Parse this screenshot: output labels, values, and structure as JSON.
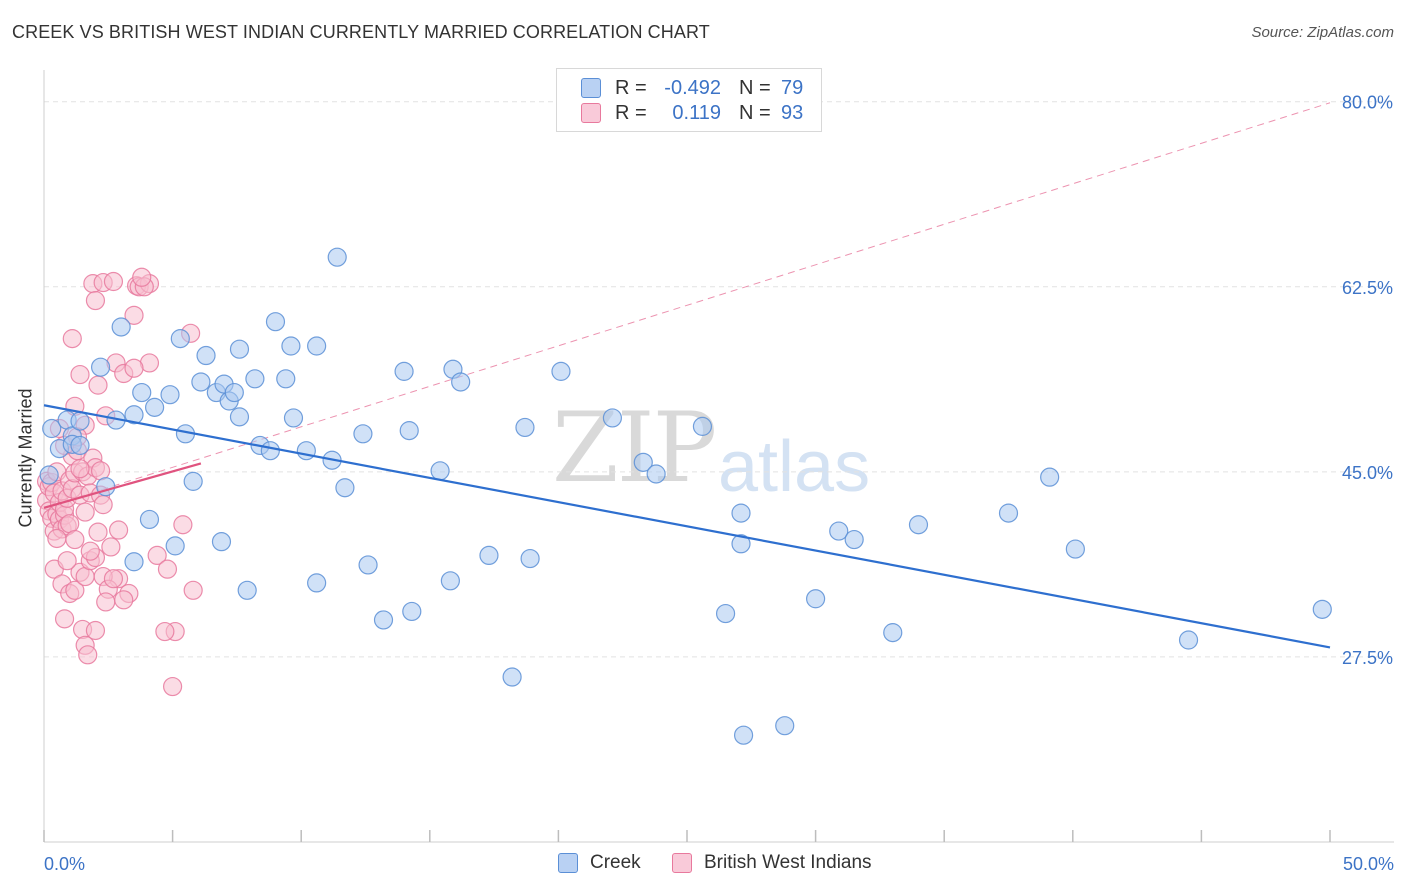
{
  "title": "CREEK VS BRITISH WEST INDIAN CURRENTLY MARRIED CORRELATION CHART",
  "source": "Source: ZipAtlas.com",
  "watermark": {
    "zip": "ZIP",
    "atlas": "atlas"
  },
  "colors": {
    "creek_fill": "#aac8f0",
    "creek_stroke": "#5b8fd6",
    "creek_line": "#2e6fcf",
    "bwi_fill": "#f7bfd0",
    "bwi_stroke": "#e8799d",
    "bwi_line": "#e0537f",
    "value_blue": "#3c73c6",
    "grid": "#e2e2e2"
  },
  "legend": {
    "rows": [
      {
        "r_label": "R =",
        "r_value": "-0.492",
        "n_label": "N =",
        "n_value": "79"
      },
      {
        "r_label": "R =",
        "r_value": "0.119",
        "n_label": "N =",
        "n_value": "93"
      }
    ]
  },
  "bottom_legend": {
    "creek": "Creek",
    "bwi": "British West Indians"
  },
  "chart_data": {
    "type": "scatter",
    "title": "CREEK VS BRITISH WEST INDIAN CURRENTLY MARRIED CORRELATION CHART",
    "xlabel": "",
    "ylabel": "Currently Married",
    "xlim": [
      0,
      50
    ],
    "ylim": [
      10,
      83
    ],
    "x_tick_labels": [
      "0.0%",
      "50.0%"
    ],
    "y_ticks": [
      27.5,
      45.0,
      62.5,
      80.0
    ],
    "y_tick_labels": [
      "27.5%",
      "45.0%",
      "62.5%",
      "80.0%"
    ],
    "grid": true,
    "series": [
      {
        "name": "Creek",
        "r": -0.492,
        "n": 79,
        "trend": {
          "x": [
            0,
            50
          ],
          "y": [
            51.3,
            28.4
          ]
        },
        "points": [
          [
            0.3,
            49.1
          ],
          [
            0.6,
            47.2
          ],
          [
            0.9,
            49.9
          ],
          [
            1.1,
            48.4
          ],
          [
            1.4,
            49.8
          ],
          [
            1.1,
            47.6
          ],
          [
            2.2,
            54.9
          ],
          [
            2.8,
            49.9
          ],
          [
            3.0,
            58.7
          ],
          [
            3.5,
            50.4
          ],
          [
            3.8,
            52.5
          ],
          [
            4.3,
            51.1
          ],
          [
            4.9,
            52.3
          ],
          [
            5.3,
            57.6
          ],
          [
            5.5,
            48.6
          ],
          [
            6.1,
            53.5
          ],
          [
            6.3,
            56.0
          ],
          [
            6.7,
            52.5
          ],
          [
            7.0,
            53.3
          ],
          [
            7.2,
            51.7
          ],
          [
            7.4,
            52.5
          ],
          [
            7.6,
            50.2
          ],
          [
            7.6,
            56.6
          ],
          [
            8.2,
            53.8
          ],
          [
            8.4,
            47.5
          ],
          [
            8.8,
            47.0
          ],
          [
            9.0,
            59.2
          ],
          [
            9.4,
            53.8
          ],
          [
            9.6,
            56.9
          ],
          [
            9.7,
            50.1
          ],
          [
            10.2,
            47.0
          ],
          [
            10.6,
            56.9
          ],
          [
            11.2,
            46.1
          ],
          [
            11.4,
            65.3
          ],
          [
            12.4,
            48.6
          ],
          [
            14.0,
            54.5
          ],
          [
            14.2,
            48.9
          ],
          [
            15.9,
            54.7
          ],
          [
            16.2,
            53.5
          ],
          [
            15.4,
            45.1
          ],
          [
            18.7,
            49.2
          ],
          [
            20.1,
            54.5
          ],
          [
            22.1,
            50.1
          ],
          [
            23.3,
            45.9
          ],
          [
            23.8,
            44.8
          ],
          [
            25.6,
            49.3
          ],
          [
            27.1,
            41.1
          ],
          [
            30.9,
            39.4
          ],
          [
            31.5,
            38.6
          ],
          [
            34.0,
            40.0
          ],
          [
            37.5,
            41.1
          ],
          [
            39.1,
            44.5
          ],
          [
            40.1,
            37.7
          ],
          [
            44.5,
            29.1
          ],
          [
            49.7,
            32.0
          ],
          [
            0.2,
            44.7
          ],
          [
            1.4,
            47.5
          ],
          [
            2.4,
            43.6
          ],
          [
            3.5,
            36.5
          ],
          [
            4.1,
            40.5
          ],
          [
            5.1,
            38.0
          ],
          [
            5.8,
            44.1
          ],
          [
            6.9,
            38.4
          ],
          [
            7.9,
            33.8
          ],
          [
            10.6,
            34.5
          ],
          [
            11.7,
            43.5
          ],
          [
            12.6,
            36.2
          ],
          [
            13.2,
            31.0
          ],
          [
            14.3,
            31.8
          ],
          [
            15.8,
            34.7
          ],
          [
            17.3,
            37.1
          ],
          [
            18.9,
            36.8
          ],
          [
            18.2,
            25.6
          ],
          [
            26.5,
            31.6
          ],
          [
            27.1,
            38.2
          ],
          [
            27.2,
            20.1
          ],
          [
            28.8,
            21.0
          ],
          [
            30.0,
            33.0
          ],
          [
            33.0,
            29.8
          ]
        ]
      },
      {
        "name": "British West Indians",
        "r": 0.119,
        "n": 93,
        "trend": {
          "x": [
            0,
            6.1
          ],
          "y": [
            41.6,
            45.8
          ]
        },
        "trend_extended": {
          "x": [
            0,
            50
          ],
          "y": [
            41.6,
            79.9
          ]
        },
        "points": [
          [
            0.1,
            44.1
          ],
          [
            0.1,
            42.3
          ],
          [
            0.2,
            43.6
          ],
          [
            0.2,
            41.3
          ],
          [
            0.3,
            40.6
          ],
          [
            0.3,
            44.0
          ],
          [
            0.4,
            43.0
          ],
          [
            0.4,
            39.4
          ],
          [
            0.5,
            45.0
          ],
          [
            0.5,
            41.0
          ],
          [
            0.6,
            40.5
          ],
          [
            0.6,
            42.1
          ],
          [
            0.7,
            39.6
          ],
          [
            0.7,
            43.2
          ],
          [
            0.8,
            40.9
          ],
          [
            0.8,
            41.5
          ],
          [
            0.9,
            39.9
          ],
          [
            0.9,
            42.5
          ],
          [
            1.0,
            44.2
          ],
          [
            1.0,
            40.1
          ],
          [
            1.1,
            46.5
          ],
          [
            1.1,
            43.4
          ],
          [
            1.2,
            44.9
          ],
          [
            1.2,
            38.6
          ],
          [
            1.3,
            47.0
          ],
          [
            1.4,
            42.8
          ],
          [
            1.5,
            45.0
          ],
          [
            1.6,
            41.2
          ],
          [
            1.7,
            44.6
          ],
          [
            1.8,
            43.0
          ],
          [
            1.9,
            46.3
          ],
          [
            2.0,
            45.4
          ],
          [
            2.1,
            39.3
          ],
          [
            2.2,
            42.8
          ],
          [
            2.3,
            41.9
          ],
          [
            2.4,
            50.3
          ],
          [
            2.6,
            37.9
          ],
          [
            2.8,
            55.3
          ],
          [
            2.9,
            34.9
          ],
          [
            3.1,
            54.3
          ],
          [
            3.3,
            33.5
          ],
          [
            3.5,
            59.8
          ],
          [
            3.6,
            62.6
          ],
          [
            3.7,
            62.5
          ],
          [
            4.1,
            55.3
          ],
          [
            4.1,
            62.8
          ],
          [
            4.4,
            37.1
          ],
          [
            5.0,
            24.7
          ],
          [
            5.1,
            29.9
          ],
          [
            5.4,
            40.0
          ],
          [
            5.7,
            58.1
          ],
          [
            5.8,
            33.8
          ],
          [
            3.9,
            62.5
          ],
          [
            1.9,
            62.8
          ],
          [
            2.0,
            61.2
          ],
          [
            2.3,
            62.9
          ],
          [
            2.7,
            63.0
          ],
          [
            3.8,
            63.4
          ],
          [
            3.5,
            54.8
          ],
          [
            1.1,
            57.6
          ],
          [
            1.4,
            54.2
          ],
          [
            2.1,
            53.2
          ],
          [
            1.2,
            51.2
          ],
          [
            1.6,
            49.4
          ],
          [
            0.6,
            49.1
          ],
          [
            0.8,
            47.5
          ],
          [
            1.3,
            48.3
          ],
          [
            1.4,
            45.3
          ],
          [
            2.2,
            45.1
          ],
          [
            0.4,
            35.8
          ],
          [
            0.7,
            34.4
          ],
          [
            1.0,
            33.5
          ],
          [
            1.2,
            33.8
          ],
          [
            1.4,
            35.5
          ],
          [
            1.6,
            35.1
          ],
          [
            1.8,
            36.6
          ],
          [
            2.0,
            36.9
          ],
          [
            2.3,
            35.1
          ],
          [
            2.5,
            33.9
          ],
          [
            2.7,
            34.9
          ],
          [
            1.5,
            30.1
          ],
          [
            2.0,
            30.0
          ],
          [
            1.6,
            28.6
          ],
          [
            1.7,
            27.7
          ],
          [
            2.4,
            32.7
          ],
          [
            3.1,
            32.9
          ],
          [
            4.8,
            35.8
          ],
          [
            0.5,
            38.7
          ],
          [
            0.8,
            31.1
          ],
          [
            0.9,
            36.6
          ],
          [
            1.8,
            37.5
          ],
          [
            2.9,
            39.5
          ],
          [
            4.7,
            29.9
          ]
        ]
      }
    ]
  }
}
